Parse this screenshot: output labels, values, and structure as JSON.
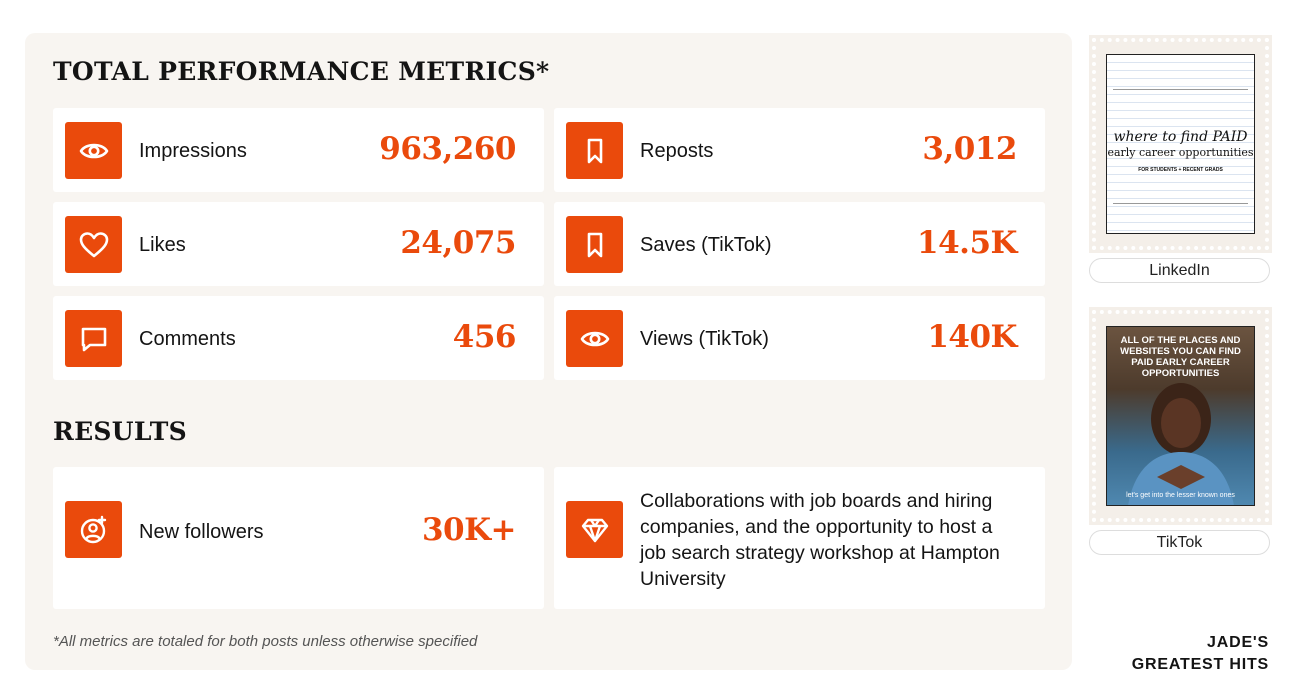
{
  "metrics_title": "TOTAL PERFORMANCE METRICS*",
  "metrics": [
    {
      "label": "Impressions",
      "value": "963,260",
      "icon": "eye-icon"
    },
    {
      "label": "Reposts",
      "value": "3,012",
      "icon": "bookmark-icon"
    },
    {
      "label": "Likes",
      "value": "24,075",
      "icon": "heart-icon"
    },
    {
      "label": "Saves (TikTok)",
      "value": "14.5K",
      "icon": "bookmark-icon"
    },
    {
      "label": "Comments",
      "value": "456",
      "icon": "comment-icon"
    },
    {
      "label": "Views (TikTok)",
      "value": "140K",
      "icon": "eye-icon"
    }
  ],
  "results_title": "RESULTS",
  "results": {
    "followers_label": "New followers",
    "followers_value": "30K+",
    "collab_text": "Collaborations with job boards and hiring companies, and the opportunity to host a job search strategy workshop at Hampton University"
  },
  "footnote": "*All metrics are totaled for both posts unless otherwise specified",
  "thumbnails": {
    "linkedin": {
      "label": "LinkedIn",
      "heading_line1": "where to find PAID",
      "heading_line2": "early career opportunities",
      "subline": "FOR STUDENTS + RECENT GRADS"
    },
    "tiktok": {
      "label": "TikTok",
      "caption": "ALL OF THE PLACES AND WEBSITES YOU CAN FIND PAID EARLY CAREER OPPORTUNITIES",
      "subcaption": "let's get into the lesser known ones"
    }
  },
  "brand": {
    "line1": "JADE'S",
    "line2": "GREATEST HITS"
  },
  "colors": {
    "accent": "#ea4a0c",
    "panel": "#f8f5f1",
    "card": "#ffffff"
  }
}
